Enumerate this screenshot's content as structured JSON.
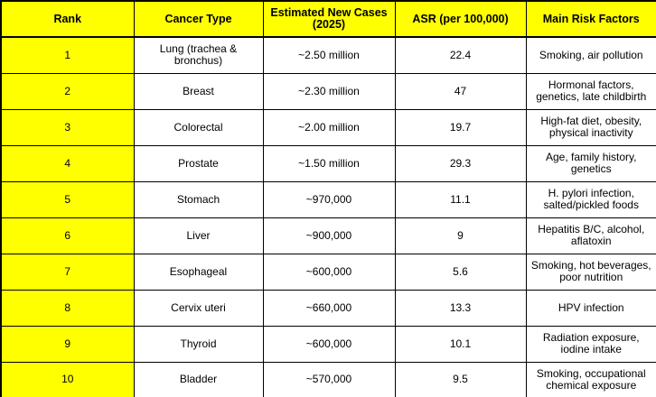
{
  "colors": {
    "header_background": "#ffff00",
    "rank_column_background": "#ffff00",
    "cell_background": "#ffffff",
    "border": "#000000",
    "text": "#000000"
  },
  "table": {
    "columns": [
      "Rank",
      "Cancer Type",
      "Estimated New Cases (2025)",
      "ASR (per 100,000)",
      "Main Risk Factors"
    ],
    "rows": [
      {
        "rank": "1",
        "type": "Lung (trachea & bronchus)",
        "cases": "~2.50 million",
        "asr": "22.4",
        "risk": "Smoking, air pollution"
      },
      {
        "rank": "2",
        "type": "Breast",
        "cases": "~2.30 million",
        "asr": "47",
        "risk": "Hormonal factors, genetics, late childbirth"
      },
      {
        "rank": "3",
        "type": "Colorectal",
        "cases": "~2.00 million",
        "asr": "19.7",
        "risk": "High-fat diet, obesity, physical inactivity"
      },
      {
        "rank": "4",
        "type": "Prostate",
        "cases": "~1.50 million",
        "asr": "29.3",
        "risk": "Age, family history, genetics"
      },
      {
        "rank": "5",
        "type": "Stomach",
        "cases": "~970,000",
        "asr": "11.1",
        "risk": "H. pylori infection, salted/pickled foods"
      },
      {
        "rank": "6",
        "type": "Liver",
        "cases": "~900,000",
        "asr": "9",
        "risk": "Hepatitis B/C, alcohol, aflatoxin"
      },
      {
        "rank": "7",
        "type": "Esophageal",
        "cases": "~600,000",
        "asr": "5.6",
        "risk": "Smoking, hot beverages, poor nutrition"
      },
      {
        "rank": "8",
        "type": "Cervix uteri",
        "cases": "~660,000",
        "asr": "13.3",
        "risk": "HPV infection"
      },
      {
        "rank": "9",
        "type": "Thyroid",
        "cases": "~600,000",
        "asr": "10.1",
        "risk": "Radiation exposure, iodine intake"
      },
      {
        "rank": "10",
        "type": "Bladder",
        "cases": "~570,000",
        "asr": "9.5",
        "risk": "Smoking, occupational chemical exposure"
      }
    ]
  }
}
